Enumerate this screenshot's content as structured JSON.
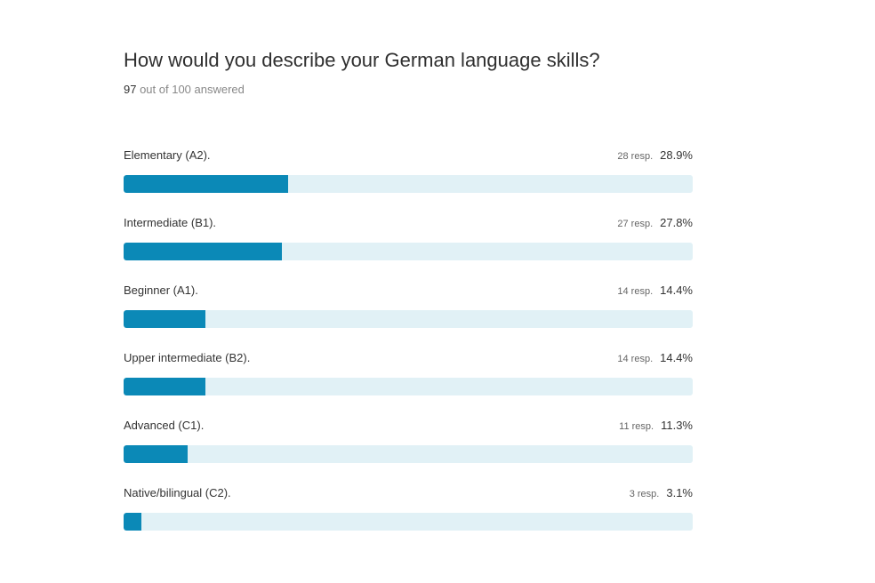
{
  "question": {
    "title": "How would you describe your German language skills?",
    "answered_count": "97",
    "answered_suffix": " out of 100 answered"
  },
  "colors": {
    "bar_fill": "#0b89b7",
    "bar_track": "#e1f1f6"
  },
  "chart_data": {
    "type": "bar",
    "orientation": "horizontal",
    "xlim": [
      0,
      100
    ],
    "categories": [
      "Elementary (A2).",
      "Intermediate (B1).",
      "Beginner (A1).",
      "Upper intermediate (B2).",
      "Advanced (C1).",
      "Native/bilingual (C2)."
    ],
    "values": [
      28.9,
      27.8,
      14.4,
      14.4,
      11.3,
      3.1
    ],
    "responses": [
      28,
      27,
      14,
      14,
      11,
      3
    ],
    "rows": [
      {
        "label": "Elementary (A2).",
        "resp": "28 resp.",
        "percent": "28.9%"
      },
      {
        "label": "Intermediate (B1).",
        "resp": "27 resp.",
        "percent": "27.8%"
      },
      {
        "label": "Beginner (A1).",
        "resp": "14 resp.",
        "percent": "14.4%"
      },
      {
        "label": "Upper intermediate (B2).",
        "resp": "14 resp.",
        "percent": "14.4%"
      },
      {
        "label": "Advanced (C1).",
        "resp": "11 resp.",
        "percent": "11.3%"
      },
      {
        "label": "Native/bilingual (C2).",
        "resp": "3 resp.",
        "percent": "3.1%"
      }
    ]
  }
}
